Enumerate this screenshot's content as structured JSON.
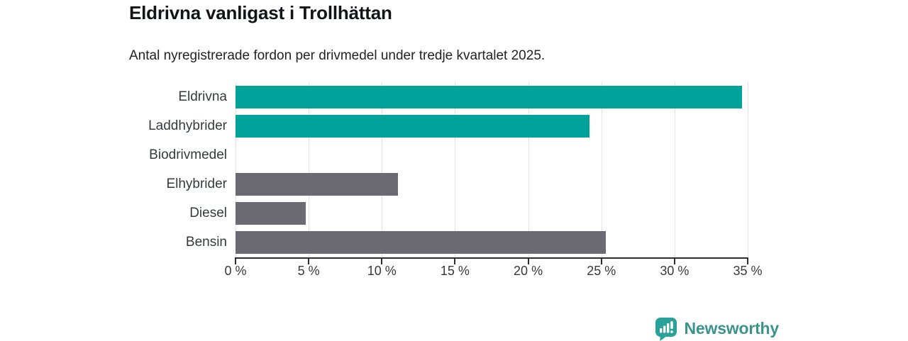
{
  "header": {
    "title": "Eldrivna vanligast i Trollhättan",
    "subtitle": "Antal nyregistrerade fordon per drivmedel under tredje kvartalet 2025."
  },
  "chart_data": {
    "type": "bar",
    "orientation": "horizontal",
    "title": "Eldrivna vanligast i Trollhättan",
    "subtitle": "Antal nyregistrerade fordon per drivmedel under tredje kvartalet 2025.",
    "categories": [
      "Eldrivna",
      "Laddhybrider",
      "Biodrivmedel",
      "Elhybrider",
      "Diesel",
      "Bensin"
    ],
    "values": [
      34.6,
      24.2,
      0,
      11.1,
      4.8,
      25.3
    ],
    "unit": "%",
    "bar_colors": [
      "#00a29a",
      "#00a29a",
      "#6b6a73",
      "#6b6a73",
      "#6b6a73",
      "#6b6a73"
    ],
    "xlabel": "",
    "ylabel": "",
    "xlim": [
      0,
      35
    ],
    "x_ticks": [
      0,
      5,
      10,
      15,
      20,
      25,
      30,
      35
    ],
    "x_tick_labels": [
      "0 %",
      "5 %",
      "10 %",
      "15 %",
      "20 %",
      "25 %",
      "30 %",
      "35 %"
    ],
    "grid": true,
    "legend": false
  },
  "colors": {
    "accent_teal": "#00a29a",
    "neutral_gray": "#6b6a73",
    "gridline": "#e3e3e3",
    "axis": "#2e2e31",
    "background": "#ffffff"
  },
  "footer": {
    "brand": "Newsworthy",
    "brand_color": "#3b938e",
    "icon": "bar-chart-speech-bubble-icon",
    "icon_color": "#2aa29a"
  }
}
